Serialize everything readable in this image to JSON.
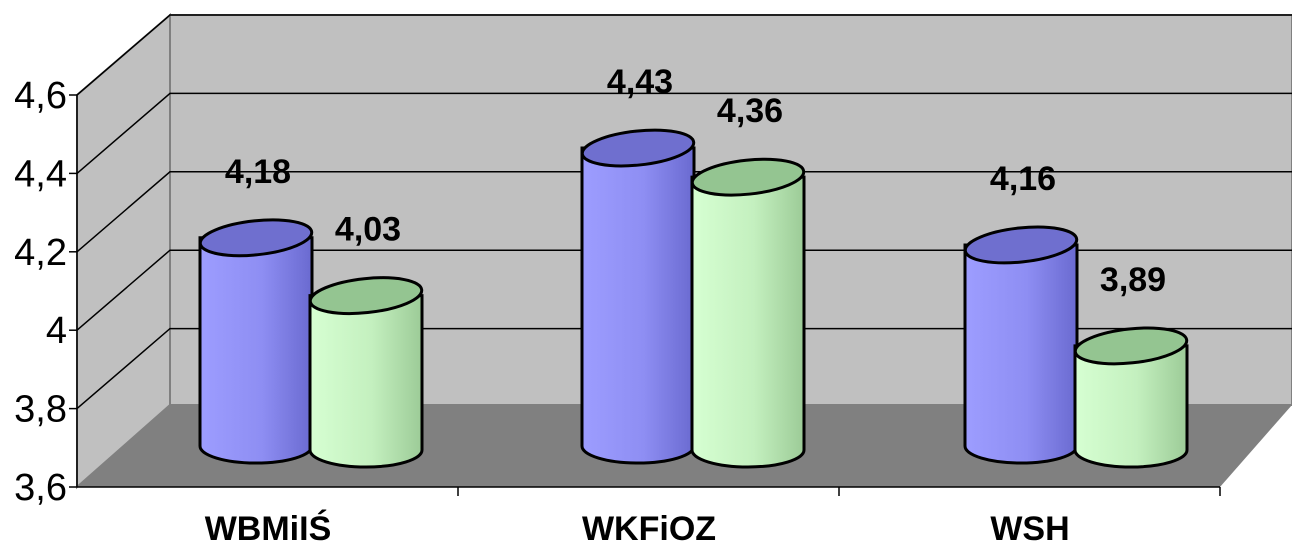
{
  "chart_data": {
    "type": "bar",
    "style": "3d-cylinder",
    "categories": [
      "WBMiIŚ",
      "WKFiOZ",
      "WSH"
    ],
    "series": [
      {
        "values": [
          4.18,
          4.43,
          4.16
        ],
        "color": "#8f8ff2"
      },
      {
        "values": [
          4.03,
          4.36,
          3.89
        ],
        "color": "#ccf5c8"
      }
    ],
    "value_labels": [
      [
        "4,18",
        "4,43",
        "4,16"
      ],
      [
        "4,03",
        "4,36",
        "3,89"
      ]
    ],
    "yticks": [
      "3,6",
      "3,8",
      "4",
      "4,2",
      "4,4",
      "4,6"
    ],
    "ylim": [
      3.6,
      4.6
    ],
    "grid": true,
    "legend": "none",
    "colors": {
      "wall": "#c0c0c0",
      "floor": "#808080",
      "grid": "#000000"
    }
  }
}
